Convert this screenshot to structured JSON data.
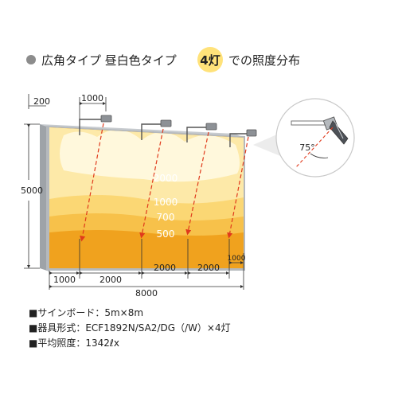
{
  "header": {
    "bullet_color": "#8c8c8c",
    "title_part1": "広角タイプ 昼白色タイプ",
    "badge": "4灯",
    "badge_color": "#ffe27a",
    "title_part2": "での照度分布"
  },
  "dimensions": {
    "offset": "200",
    "lamp_spacing_top": "1000",
    "height": "5000",
    "bottom_segments": [
      "1000",
      "2000",
      "2000",
      "2000",
      "1000"
    ],
    "total_width": "8000"
  },
  "lux_labels": [
    "2000",
    "1000",
    "700",
    "500"
  ],
  "zone_colors": [
    "#fff8dc",
    "#fde9a8",
    "#fbd774",
    "#f7c14a",
    "#f0a21e"
  ],
  "inset": {
    "angle": "75°"
  },
  "specs": [
    "■サインボード：5m×8m",
    "■器具形式：ECF1892N/SA2/DG（/W）×4灯",
    "■平均照度：1342ℓx"
  ]
}
